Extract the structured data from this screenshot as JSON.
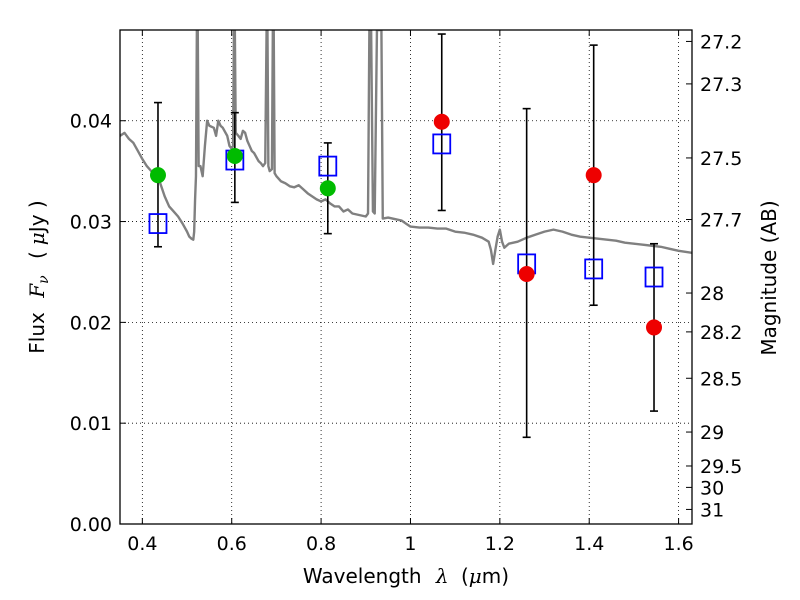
{
  "chart_data": {
    "type": "scatter",
    "title": "",
    "xlabel": "Wavelength",
    "xlabel_symbol": "λ",
    "xlabel_unit_open": "(",
    "xlabel_unit_mu": "μ",
    "xlabel_unit_rest": "m)",
    "ylabel": "Flux",
    "ylabel_symbol": "F",
    "ylabel_subscript": "ν",
    "ylabel_unit_open": "(",
    "ylabel_unit_mu": "μ",
    "ylabel_unit_rest": "Jy )",
    "y2label": "Magnitude (AB)",
    "xlim": [
      0.35,
      1.63
    ],
    "ylim": [
      0.0,
      0.049
    ],
    "grid": true,
    "x_ticks": [
      0.4,
      0.6,
      0.8,
      1.0,
      1.2,
      1.4,
      1.6
    ],
    "x_tick_labels": [
      "0.4",
      "0.6",
      "0.8",
      "1",
      "1.2",
      "1.4",
      "1.6"
    ],
    "y_ticks": [
      0.0,
      0.01,
      0.02,
      0.03,
      0.04
    ],
    "y_tick_labels": [
      "0.00",
      "0.01",
      "0.02",
      "0.03",
      "0.04"
    ],
    "y2_ticks": [
      {
        "label": "27.2",
        "value": 27.2
      },
      {
        "label": "27.3",
        "value": 27.3
      },
      {
        "label": "27.5",
        "value": 27.5
      },
      {
        "label": "27.7",
        "value": 27.7
      },
      {
        "label": "28",
        "value": 28.0
      },
      {
        "label": "28.2",
        "value": 28.2
      },
      {
        "label": "28.5",
        "value": 28.5
      },
      {
        "label": "29",
        "value": 29.0
      },
      {
        "label": "29.5",
        "value": 29.5
      },
      {
        "label": "30",
        "value": 30.0
      },
      {
        "label": "31",
        "value": 31.0
      }
    ],
    "series": [
      {
        "name": "model-spectrum",
        "kind": "line",
        "color": "#808080",
        "points": [
          [
            0.35,
            0.0385
          ],
          [
            0.36,
            0.0388
          ],
          [
            0.37,
            0.0382
          ],
          [
            0.38,
            0.0378
          ],
          [
            0.39,
            0.037
          ],
          [
            0.4,
            0.0362
          ],
          [
            0.41,
            0.0355
          ],
          [
            0.42,
            0.035
          ],
          [
            0.43,
            0.0345
          ],
          [
            0.44,
            0.0338
          ],
          [
            0.45,
            0.0325
          ],
          [
            0.46,
            0.0315
          ],
          [
            0.47,
            0.031
          ],
          [
            0.48,
            0.0305
          ],
          [
            0.49,
            0.0298
          ],
          [
            0.5,
            0.029
          ],
          [
            0.505,
            0.0285
          ],
          [
            0.51,
            0.0283
          ],
          [
            0.514,
            0.0282
          ],
          [
            0.516,
            0.029
          ],
          [
            0.518,
            0.0322
          ],
          [
            0.52,
            0.0345
          ],
          [
            0.522,
            0.049
          ],
          [
            0.524,
            0.049
          ],
          [
            0.526,
            0.0355
          ],
          [
            0.53,
            0.0355
          ],
          [
            0.535,
            0.0345
          ],
          [
            0.54,
            0.0375
          ],
          [
            0.545,
            0.04
          ],
          [
            0.55,
            0.0395
          ],
          [
            0.56,
            0.0393
          ],
          [
            0.565,
            0.0385
          ],
          [
            0.57,
            0.04
          ],
          [
            0.575,
            0.0395
          ],
          [
            0.58,
            0.0393
          ],
          [
            0.59,
            0.0385
          ],
          [
            0.595,
            0.0375
          ],
          [
            0.6,
            0.0372
          ],
          [
            0.603,
            0.0375
          ],
          [
            0.605,
            0.049
          ],
          [
            0.607,
            0.049
          ],
          [
            0.609,
            0.0388
          ],
          [
            0.615,
            0.0385
          ],
          [
            0.62,
            0.0382
          ],
          [
            0.625,
            0.039
          ],
          [
            0.63,
            0.0388
          ],
          [
            0.635,
            0.038
          ],
          [
            0.64,
            0.0375
          ],
          [
            0.645,
            0.037
          ],
          [
            0.65,
            0.0368
          ],
          [
            0.66,
            0.036
          ],
          [
            0.665,
            0.0358
          ],
          [
            0.67,
            0.0355
          ],
          [
            0.675,
            0.0358
          ],
          [
            0.678,
            0.049
          ],
          [
            0.68,
            0.049
          ],
          [
            0.682,
            0.0355
          ],
          [
            0.685,
            0.035
          ],
          [
            0.69,
            0.0352
          ],
          [
            0.692,
            0.049
          ],
          [
            0.694,
            0.049
          ],
          [
            0.696,
            0.0348
          ],
          [
            0.7,
            0.0345
          ],
          [
            0.71,
            0.034
          ],
          [
            0.72,
            0.0338
          ],
          [
            0.73,
            0.0335
          ],
          [
            0.74,
            0.0334
          ],
          [
            0.75,
            0.0336
          ],
          [
            0.76,
            0.0332
          ],
          [
            0.77,
            0.0328
          ],
          [
            0.78,
            0.0325
          ],
          [
            0.79,
            0.0322
          ],
          [
            0.8,
            0.032
          ],
          [
            0.81,
            0.0322
          ],
          [
            0.82,
            0.0318
          ],
          [
            0.83,
            0.0315
          ],
          [
            0.84,
            0.0315
          ],
          [
            0.85,
            0.031
          ],
          [
            0.86,
            0.0312
          ],
          [
            0.87,
            0.0308
          ],
          [
            0.88,
            0.0307
          ],
          [
            0.89,
            0.0306
          ],
          [
            0.9,
            0.0305
          ],
          [
            0.905,
            0.0308
          ],
          [
            0.908,
            0.049
          ],
          [
            0.912,
            0.049
          ],
          [
            0.916,
            0.031
          ],
          [
            0.92,
            0.0308
          ],
          [
            0.925,
            0.049
          ],
          [
            0.935,
            0.049
          ],
          [
            0.938,
            0.0303
          ],
          [
            0.95,
            0.0304
          ],
          [
            0.96,
            0.0303
          ],
          [
            0.97,
            0.0302
          ],
          [
            0.98,
            0.0301
          ],
          [
            0.99,
            0.0298
          ],
          [
            1.0,
            0.0295
          ],
          [
            1.02,
            0.0294
          ],
          [
            1.04,
            0.0294
          ],
          [
            1.06,
            0.0293
          ],
          [
            1.08,
            0.0293
          ],
          [
            1.1,
            0.029
          ],
          [
            1.12,
            0.0289
          ],
          [
            1.14,
            0.0287
          ],
          [
            1.16,
            0.0284
          ],
          [
            1.175,
            0.028
          ],
          [
            1.18,
            0.0272
          ],
          [
            1.185,
            0.0258
          ],
          [
            1.19,
            0.0272
          ],
          [
            1.195,
            0.0285
          ],
          [
            1.2,
            0.0292
          ],
          [
            1.205,
            0.028
          ],
          [
            1.21,
            0.0274
          ],
          [
            1.22,
            0.0278
          ],
          [
            1.24,
            0.028
          ],
          [
            1.26,
            0.0284
          ],
          [
            1.28,
            0.0287
          ],
          [
            1.3,
            0.029
          ],
          [
            1.32,
            0.0292
          ],
          [
            1.34,
            0.029
          ],
          [
            1.36,
            0.0287
          ],
          [
            1.38,
            0.0285
          ],
          [
            1.4,
            0.0284
          ],
          [
            1.42,
            0.0283
          ],
          [
            1.44,
            0.0282
          ],
          [
            1.46,
            0.0281
          ],
          [
            1.48,
            0.0279
          ],
          [
            1.5,
            0.0278
          ],
          [
            1.52,
            0.0277
          ],
          [
            1.54,
            0.0276
          ],
          [
            1.56,
            0.0275
          ],
          [
            1.58,
            0.0273
          ],
          [
            1.6,
            0.0271
          ],
          [
            1.63,
            0.0269
          ]
        ]
      },
      {
        "name": "model-photometry",
        "kind": "open-square",
        "color": "#0000ff",
        "x": [
          0.435,
          0.607,
          0.815,
          1.07,
          1.26,
          1.41,
          1.545
        ],
        "y": [
          0.0298,
          0.0361,
          0.0355,
          0.0377,
          0.0258,
          0.0253,
          0.0245
        ]
      },
      {
        "name": "observed-green",
        "kind": "filled-circle",
        "color": "#00bb00",
        "x": [
          0.435,
          0.607,
          0.815
        ],
        "y": [
          0.0346,
          0.0365,
          0.0333
        ],
        "err_low": [
          0.0275,
          0.0319,
          0.0288
        ],
        "err_high": [
          0.0418,
          0.0408,
          0.0378
        ]
      },
      {
        "name": "observed-red",
        "kind": "filled-circle",
        "color": "#ee0000",
        "x": [
          1.07,
          1.26,
          1.41,
          1.545
        ],
        "y": [
          0.0399,
          0.0248,
          0.0346,
          0.0195
        ],
        "err_low": [
          0.0311,
          0.0086,
          0.0217,
          0.0112
        ],
        "err_high": [
          0.0486,
          0.0412,
          0.0475,
          0.0278
        ]
      }
    ]
  }
}
